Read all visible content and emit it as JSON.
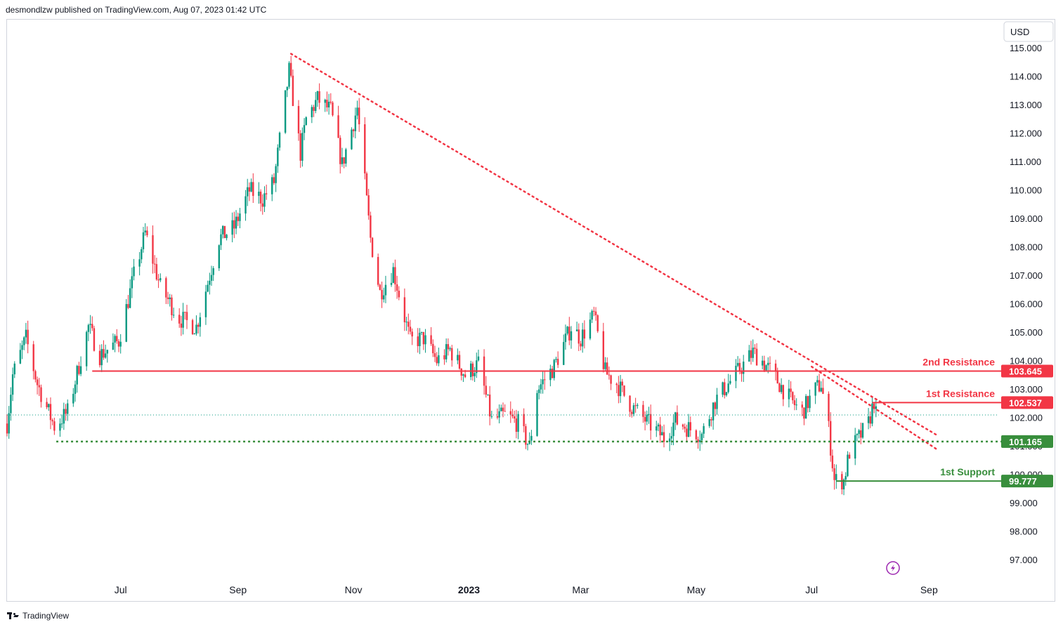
{
  "header": {
    "author": "desmondlzw",
    "published_on": " published on TradingView.com, ",
    "date": "Aug 07, 2023 01:42 UTC"
  },
  "footer": {
    "brand": "TradingView"
  },
  "chart_data": {
    "type": "candlestick",
    "currency_label": "USD",
    "y_axis_ticks": [
      115,
      114,
      113,
      112,
      111,
      110,
      109,
      108,
      107,
      106,
      105,
      104,
      103,
      102,
      101,
      100,
      99,
      98,
      97
    ],
    "y_axis_tick_labels": [
      "115.000",
      "114.000",
      "113.000",
      "112.000",
      "111.000",
      "110.000",
      "109.000",
      "108.000",
      "107.000",
      "106.000",
      "105.000",
      "104.000",
      "103.000",
      "102.000",
      "101.000",
      "100.000",
      "99.000",
      "98.000",
      "97.000"
    ],
    "ylim": [
      96.3,
      116.0
    ],
    "x_axis_labels": [
      {
        "label": "Jul",
        "date": "2022-07-01",
        "bold": false
      },
      {
        "label": "Sep",
        "date": "2022-09-01",
        "bold": false
      },
      {
        "label": "Nov",
        "date": "2022-11-01",
        "bold": false
      },
      {
        "label": "2023",
        "date": "2023-01-01",
        "bold": true
      },
      {
        "label": "Mar",
        "date": "2023-03-01",
        "bold": false
      },
      {
        "label": "May",
        "date": "2023-05-01",
        "bold": false
      },
      {
        "label": "Jul",
        "date": "2023-07-01",
        "bold": false
      },
      {
        "label": "Sep",
        "date": "2023-09-01",
        "bold": false
      }
    ],
    "x_range": [
      "2022-05-02",
      "2023-10-08"
    ],
    "price_path": [
      [
        "2022-05-02",
        101.8
      ],
      [
        "2022-05-05",
        103.5
      ],
      [
        "2022-05-12",
        104.8
      ],
      [
        "2022-05-18",
        103.2
      ],
      [
        "2022-05-27",
        101.7
      ],
      [
        "2022-06-03",
        102.2
      ],
      [
        "2022-06-14",
        105.2
      ],
      [
        "2022-06-20",
        104.2
      ],
      [
        "2022-06-30",
        104.7
      ],
      [
        "2022-07-08",
        107.0
      ],
      [
        "2022-07-14",
        108.5
      ],
      [
        "2022-07-22",
        106.6
      ],
      [
        "2022-08-01",
        105.5
      ],
      [
        "2022-08-10",
        105.2
      ],
      [
        "2022-08-22",
        108.3
      ],
      [
        "2022-08-30",
        108.7
      ],
      [
        "2022-09-07",
        110.0
      ],
      [
        "2022-09-14",
        109.7
      ],
      [
        "2022-09-20",
        110.3
      ],
      [
        "2022-09-28",
        114.2
      ],
      [
        "2022-10-04",
        111.3
      ],
      [
        "2022-10-07",
        112.5
      ],
      [
        "2022-10-13",
        113.2
      ],
      [
        "2022-10-20",
        112.8
      ],
      [
        "2022-10-26",
        110.9
      ],
      [
        "2022-11-03",
        112.9
      ],
      [
        "2022-11-10",
        108.3
      ],
      [
        "2022-11-15",
        106.4
      ],
      [
        "2022-11-22",
        107.2
      ],
      [
        "2022-12-01",
        104.7
      ],
      [
        "2022-12-08",
        104.8
      ],
      [
        "2022-12-15",
        104.0
      ],
      [
        "2022-12-22",
        104.4
      ],
      [
        "2022-12-30",
        103.5
      ],
      [
        "2023-01-06",
        103.9
      ],
      [
        "2023-01-13",
        101.9
      ],
      [
        "2023-01-20",
        102.1
      ],
      [
        "2023-01-27",
        101.8
      ],
      [
        "2023-02-02",
        101.0
      ],
      [
        "2023-02-06",
        103.0
      ],
      [
        "2023-02-15",
        103.8
      ],
      [
        "2023-02-24",
        105.2
      ],
      [
        "2023-03-01",
        104.8
      ],
      [
        "2023-03-08",
        105.6
      ],
      [
        "2023-03-14",
        103.6
      ],
      [
        "2023-03-20",
        103.2
      ],
      [
        "2023-03-28",
        102.4
      ],
      [
        "2023-04-06",
        101.8
      ],
      [
        "2023-04-14",
        101.3
      ],
      [
        "2023-04-20",
        101.9
      ],
      [
        "2023-04-28",
        101.6
      ],
      [
        "2023-05-04",
        101.4
      ],
      [
        "2023-05-11",
        102.6
      ],
      [
        "2023-05-18",
        103.2
      ],
      [
        "2023-05-31",
        104.3
      ],
      [
        "2023-06-05",
        104.0
      ],
      [
        "2023-06-12",
        103.4
      ],
      [
        "2023-06-20",
        102.6
      ],
      [
        "2023-06-26",
        102.2
      ],
      [
        "2023-07-03",
        103.0
      ],
      [
        "2023-07-06",
        103.2
      ],
      [
        "2023-07-10",
        101.6
      ],
      [
        "2023-07-13",
        99.8
      ],
      [
        "2023-07-18",
        99.8
      ],
      [
        "2023-07-21",
        100.8
      ],
      [
        "2023-07-26",
        101.3
      ],
      [
        "2023-07-31",
        101.8
      ],
      [
        "2023-08-03",
        102.6
      ],
      [
        "2023-08-04",
        102.1
      ]
    ],
    "horizontal_levels": [
      {
        "name": "2nd Resistance",
        "value": 103.645,
        "label": "103.645",
        "start": "2022-06-16",
        "color": "#f23645",
        "style": "solid"
      },
      {
        "name": "1st Resistance",
        "value": 102.537,
        "label": "102.537",
        "start": "2023-08-02",
        "color": "#f23645",
        "style": "solid"
      },
      {
        "name": "1st Support",
        "value": 99.777,
        "label": "99.777",
        "start": "2023-07-14",
        "color": "#388e3c",
        "style": "solid"
      },
      {
        "name": "",
        "value": 101.165,
        "label": "101.165",
        "start": "2022-05-28",
        "color": "#388e3c",
        "style": "dotted"
      }
    ],
    "level_titles": {
      "second_resistance": "2nd Resistance",
      "first_resistance": "1st Resistance",
      "first_support": "1st Support"
    },
    "trendlines": [
      {
        "from": [
          "2022-09-29",
          114.8
        ],
        "to": [
          "2023-09-05",
          101.4
        ],
        "color": "#f23645",
        "style": "dotted"
      },
      {
        "from": [
          "2023-07-01",
          103.8
        ],
        "to": [
          "2023-09-05",
          100.9
        ],
        "color": "#f23645",
        "style": "dotted"
      }
    ],
    "last_price": 102.1,
    "colors": {
      "up": "#089981",
      "down": "#f23645",
      "support": "#388e3c",
      "resistance": "#f23645",
      "grid_text": "#131722"
    }
  }
}
